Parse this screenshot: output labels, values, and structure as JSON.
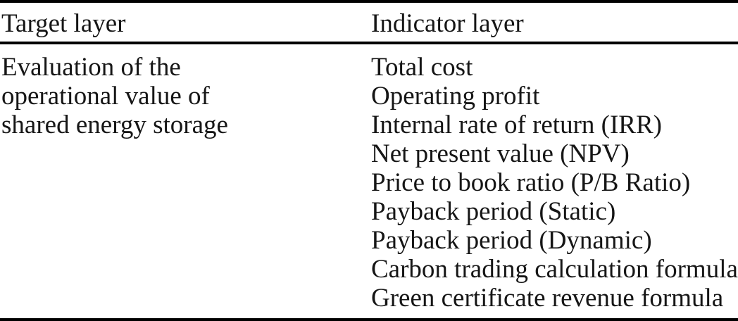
{
  "table": {
    "headers": {
      "target": "Target layer",
      "indicator": "Indicator layer"
    },
    "row": {
      "target_layer_lines": [
        "Evaluation of the",
        "operational value of",
        "shared energy storage"
      ],
      "indicators": [
        "Total cost",
        "Operating profit",
        "Internal rate of return (IRR)",
        "Net present value (NPV)",
        "Price to book ratio (P/B Ratio)",
        "Payback period (Static)",
        "Payback period (Dynamic)",
        "Carbon trading calculation formula",
        "Green certificate revenue formula"
      ]
    },
    "colors": {
      "text": "#161616",
      "rule": "#000000",
      "background": "#ffffff"
    }
  }
}
